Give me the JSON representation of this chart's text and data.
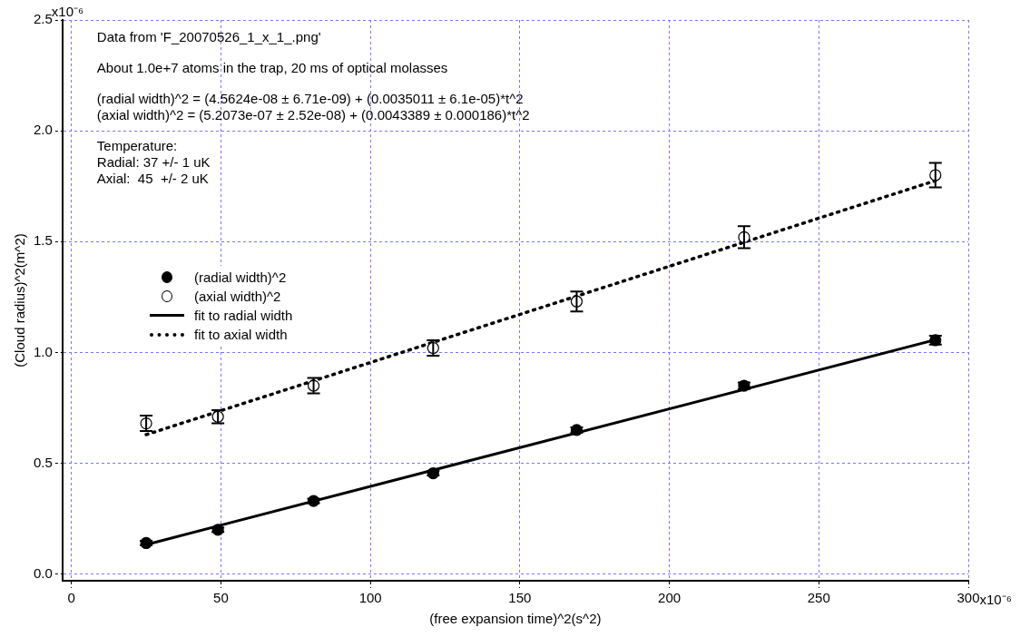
{
  "chart_data": {
    "type": "scatter",
    "xlabel": "(free expansion time)^2(s^2)",
    "ylabel": "(Cloud radius)^2(m^2)",
    "xlim": [
      -3,
      300
    ],
    "ylim": [
      -0.03,
      2.5
    ],
    "xticks": [
      0,
      50,
      100,
      150,
      200,
      250,
      300
    ],
    "yticks": [
      {
        "value": 0,
        "label": "0.0"
      },
      {
        "value": 0.5,
        "label": "0.5"
      },
      {
        "value": 1,
        "label": "1.0"
      },
      {
        "value": 1.5,
        "label": "1.5"
      },
      {
        "value": 2,
        "label": "2.0"
      },
      2.5
    ],
    "grid": true,
    "legend": "left",
    "annotations": [
      "Data from 'F_20070526_1_x_1_.png'",
      "About 1.0e+7 atoms in the trap, 20 ms of optical molasses",
      "(radial width)^2 = (4.5624e-08 ± 6.71e-09) + (0.0035011 ± 6.1e-05)*t^2",
      "(axial width)^2 = (5.2073e-07 ± 2.52e-08) + (0.0043389 ± 0.000186)*t^2",
      "Temperature:",
      "Radial: 37 +/- 1 uK",
      "Axial:  45  +/- 2 uK",
      "x10⁻⁶",
      "x10⁻⁶"
    ],
    "series": [
      {
        "name": "(radial width)^2",
        "type": "scatter",
        "marker": "circle",
        "color": "#000000",
        "x": [
          25,
          49,
          81,
          121,
          169,
          225,
          289
        ],
        "values": [
          0.14,
          0.2,
          0.33,
          0.455,
          0.65,
          0.85,
          1.055
        ],
        "errors": [
          0.01,
          0.01,
          0.01,
          0.01,
          0.012,
          0.015,
          0.02
        ]
      },
      {
        "name": "(axial width)^2",
        "type": "scatter",
        "marker": "circle",
        "color": "#000000",
        "x": [
          25,
          49,
          81,
          121,
          169,
          225,
          289
        ],
        "values": [
          0.68,
          0.71,
          0.85,
          1.02,
          1.23,
          1.52,
          1.8
        ],
        "errors": [
          0.035,
          0.03,
          0.035,
          0.035,
          0.045,
          0.05,
          0.055
        ]
      },
      {
        "name": "fit to radial width",
        "type": "line",
        "line_style": "solid",
        "color": "#000000",
        "x": [
          25,
          289
        ],
        "values": [
          0.133,
          1.057
        ]
      },
      {
        "name": "fit to axial width",
        "type": "line",
        "line_style": "dotted",
        "color": "#000000",
        "x": [
          25,
          289
        ],
        "values": [
          0.629,
          1.775
        ]
      }
    ]
  }
}
